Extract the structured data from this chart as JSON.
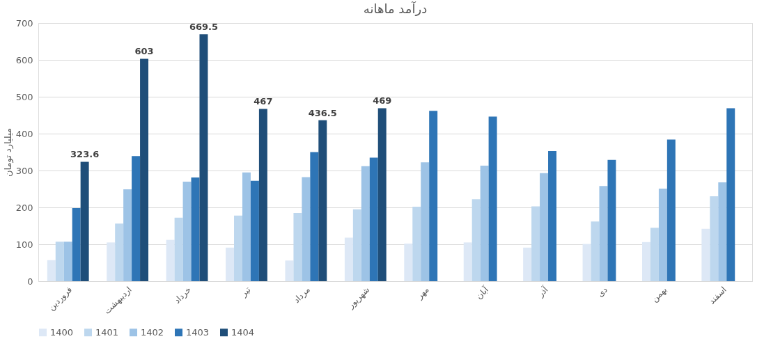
{
  "chart_data": {
    "type": "bar",
    "title": "درآمد ماهانه",
    "ylabel": "میلیارد تومان",
    "categories": [
      "فروردین",
      "اردیبهشت",
      "خرداد",
      "تیر",
      "مرداد",
      "شهریور",
      "مهر",
      "آبان",
      "آذر",
      "دی",
      "بهمن",
      "اسفند"
    ],
    "series": [
      {
        "name": "1400",
        "color": "#dde8f6",
        "values": [
          57,
          105,
          112,
          91,
          56,
          118,
          102,
          105,
          91,
          101,
          106,
          142
        ]
      },
      {
        "name": "1401",
        "color": "#bdd7ee",
        "values": [
          107,
          156,
          172,
          178,
          185,
          195,
          202,
          222,
          203,
          162,
          145,
          230
        ]
      },
      {
        "name": "1402",
        "color": "#9dc3e6",
        "values": [
          107,
          249,
          270,
          295,
          282,
          312,
          322,
          313,
          293,
          258,
          251,
          268
        ]
      },
      {
        "name": "1403",
        "color": "#2e75b6",
        "values": [
          198,
          339,
          281,
          272,
          350,
          335,
          462,
          446,
          353,
          329,
          384,
          469
        ]
      },
      {
        "name": "1404",
        "color": "#1f4e79",
        "values": [
          323.6,
          603,
          669.5,
          467,
          436.5,
          469,
          null,
          null,
          null,
          null,
          null,
          null
        ],
        "value_labels": [
          "323.6",
          "603",
          "669.5",
          "467",
          "436.5",
          "469",
          null,
          null,
          null,
          null,
          null,
          null
        ]
      }
    ],
    "ylim": [
      0,
      700
    ],
    "yticks": [
      0,
      100,
      200,
      300,
      400,
      500,
      600,
      700
    ],
    "grid": "y",
    "legend": "bottom"
  }
}
